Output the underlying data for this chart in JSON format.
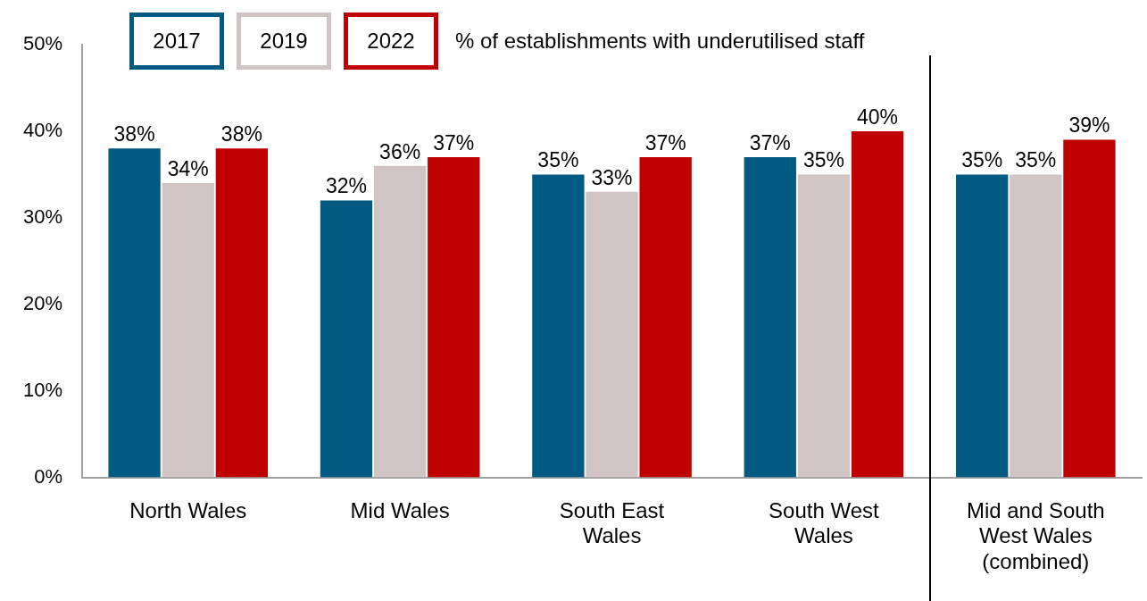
{
  "chart_data": {
    "type": "bar",
    "title": "% of establishments with underutilised staff",
    "categories": [
      "North Wales",
      "Mid Wales",
      "South East Wales",
      "South West Wales",
      "Mid and South West Wales (combined)"
    ],
    "series": [
      {
        "name": "2017",
        "color": "#005a82",
        "values": [
          38,
          32,
          35,
          37,
          35
        ],
        "value_labels": [
          "38%",
          "32%",
          "35%",
          "37%",
          "35%"
        ]
      },
      {
        "name": "2019",
        "color": "#d0c4c4",
        "values": [
          34,
          36,
          33,
          35,
          35
        ],
        "value_labels": [
          "34%",
          "36%",
          "33%",
          "35%",
          "35%"
        ]
      },
      {
        "name": "2022",
        "color": "#c00000",
        "values": [
          38,
          37,
          37,
          40,
          39
        ],
        "value_labels": [
          "38%",
          "37%",
          "37%",
          "40%",
          "39%"
        ]
      }
    ],
    "ylim": [
      0,
      50
    ],
    "yticks": [
      {
        "value": 0,
        "label": "0%"
      },
      {
        "value": 10,
        "label": "10%"
      },
      {
        "value": 20,
        "label": "20%"
      },
      {
        "value": 30,
        "label": "30%"
      },
      {
        "value": 40,
        "label": "40%"
      },
      {
        "value": 50,
        "label": "50%"
      }
    ],
    "grid": false,
    "legend": "top"
  }
}
